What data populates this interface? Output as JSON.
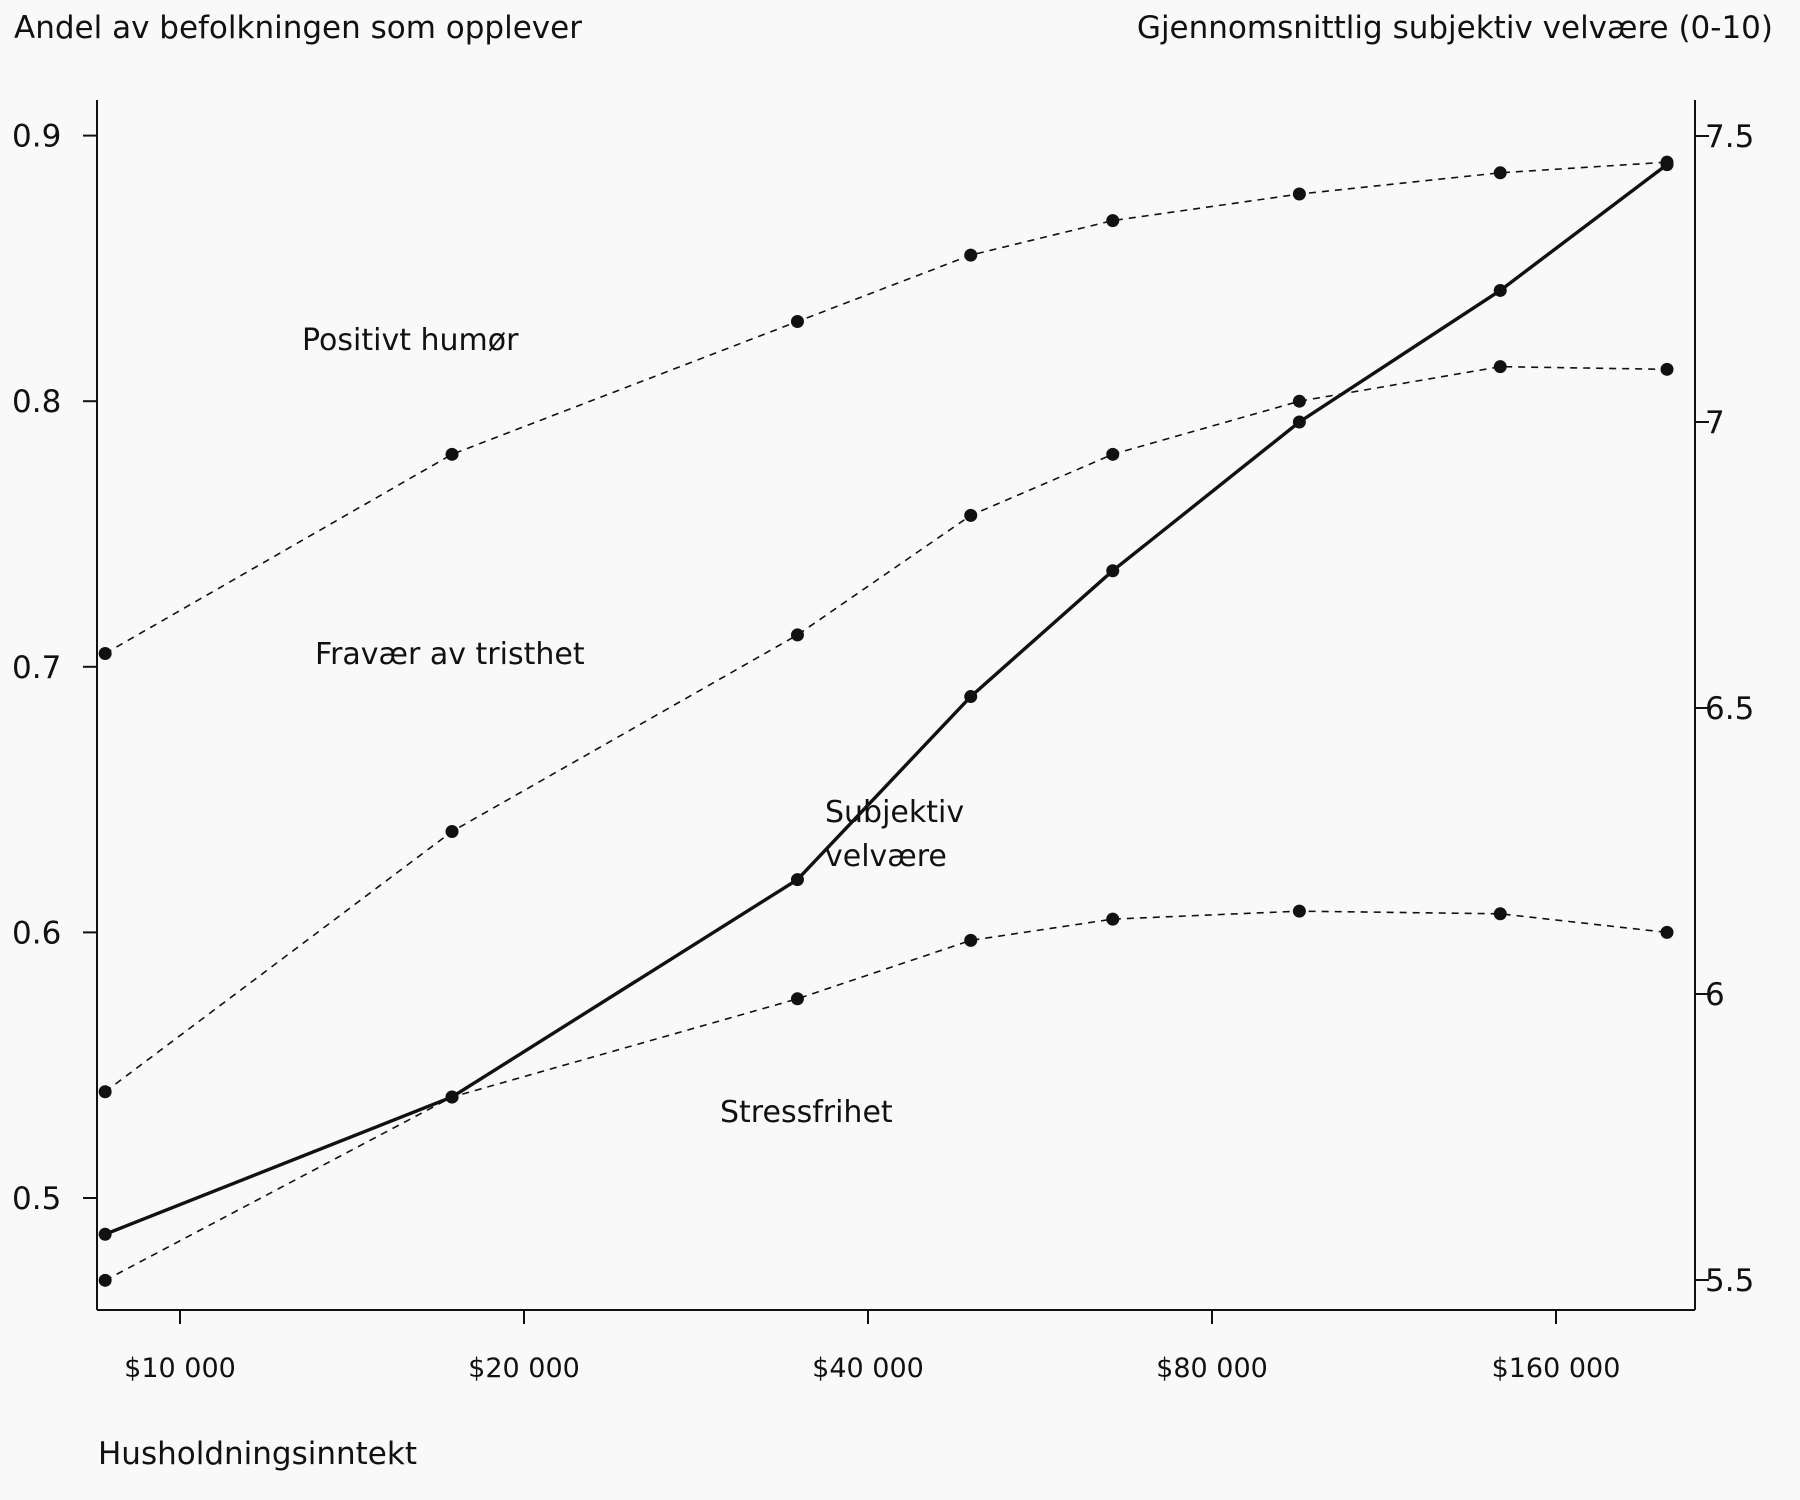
{
  "chart_data": {
    "type": "line",
    "left_axis": {
      "title": "Andel av befolkningen som opplever",
      "ylim": [
        0.46,
        0.91
      ],
      "ticks": [
        "0.5",
        "0.6",
        "0.7",
        "0.8",
        "0.9"
      ],
      "tick_values": [
        0.5,
        0.6,
        0.7,
        0.8,
        0.9
      ]
    },
    "right_axis": {
      "title": "Gjennomsnittlig subjektiv velvære (0-10)",
      "ylim": [
        5.47,
        7.52
      ],
      "ticks": [
        "5.5",
        "6",
        "6.5",
        "7",
        "7.5"
      ],
      "tick_values": [
        5.5,
        6.0,
        6.5,
        7.0,
        7.5
      ]
    },
    "x_axis": {
      "title": "Husholdningsinntekt",
      "scale": "log",
      "xlim": [
        8000,
        210000
      ],
      "ticks": [
        "$10 000",
        "$20 000",
        "$40 000",
        "$80 000",
        "$160 000"
      ],
      "tick_values": [
        10000,
        20000,
        40000,
        80000,
        160000
      ]
    },
    "x": [
      8600,
      17300,
      34700,
      49200,
      65500,
      95400,
      143000,
      275000
    ],
    "series": [
      {
        "name": "Positivt humør",
        "axis": "left",
        "style": "dashed",
        "values": [
          0.705,
          0.78,
          0.83,
          0.855,
          0.868,
          0.878,
          0.886,
          0.89
        ]
      },
      {
        "name": "Fravær av tristhet",
        "axis": "left",
        "style": "dashed",
        "values": [
          0.54,
          0.638,
          0.712,
          0.757,
          0.78,
          0.8,
          0.813,
          0.812
        ]
      },
      {
        "name": "Stressfrihet",
        "axis": "left",
        "style": "dashed",
        "values": [
          0.469,
          0.538,
          0.575,
          0.597,
          0.605,
          0.608,
          0.607,
          0.6
        ]
      },
      {
        "name": "Subjektiv velvære",
        "axis": "right",
        "style": "solid",
        "values": [
          5.58,
          5.82,
          6.2,
          6.52,
          6.74,
          7.0,
          7.23,
          7.45
        ]
      }
    ],
    "annotations": {
      "positive_mood": "Positivt humør",
      "absence_sadness": "Fravær av tristhet",
      "wellbeing_line1": "Subjektiv",
      "wellbeing_line2": "velvære",
      "stress_free": "Stressfrihet"
    },
    "grid": false,
    "legend": "none (series labelled inline)"
  }
}
